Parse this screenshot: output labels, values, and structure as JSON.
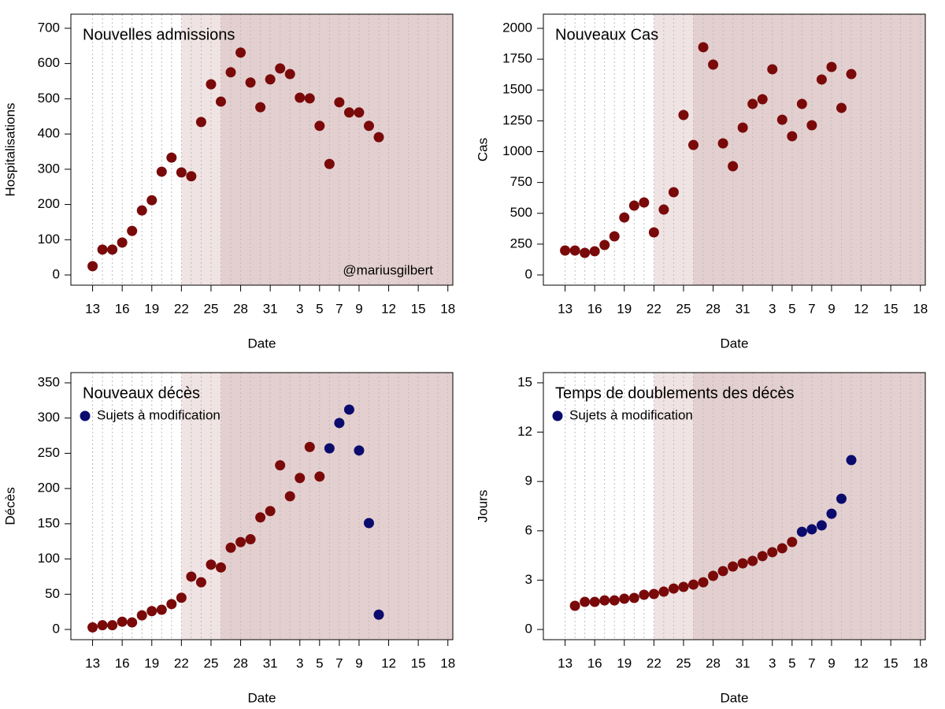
{
  "chart_data": [
    {
      "type": "scatter",
      "title": "Nouvelles admissions",
      "xlabel": "Date",
      "ylabel": "Hospitalisations",
      "annotation": "@mariusgilbert",
      "categories": [
        "13",
        null,
        null,
        "16",
        null,
        null,
        "19",
        null,
        null,
        "22",
        null,
        null,
        "25",
        null,
        null,
        "28",
        null,
        null,
        "31",
        null,
        null,
        "3",
        null,
        "5",
        null,
        "7",
        null,
        "9",
        null,
        null,
        "12",
        null,
        null,
        "15",
        null,
        null,
        "18"
      ],
      "series": [
        {
          "color": "#7a0a0a",
          "values": [
            25,
            72,
            72,
            92,
            125,
            183,
            212,
            293,
            333,
            291,
            280,
            434,
            541,
            492,
            575,
            631,
            546,
            476,
            555,
            586,
            570,
            503,
            501,
            423,
            315,
            490,
            461,
            461,
            423,
            391,
            null,
            null,
            null,
            null,
            null,
            null,
            null
          ]
        }
      ],
      "xlim": [
        -2.2,
        36.5
      ],
      "ylim": [
        -29,
        740
      ],
      "yticks": [
        0,
        100,
        200,
        300,
        400,
        500,
        600,
        700
      ],
      "grid": true,
      "bands": [
        {
          "start": 9,
          "end": 13,
          "color": "#f0e3e3"
        },
        {
          "start": 13,
          "end": 36.5,
          "color": "#e3cfcf"
        }
      ]
    },
    {
      "type": "scatter",
      "title": "Nouveaux Cas",
      "xlabel": "Date",
      "ylabel": "Cas",
      "categories": [
        "13",
        null,
        null,
        "16",
        null,
        null,
        "19",
        null,
        null,
        "22",
        null,
        null,
        "25",
        null,
        null,
        "28",
        null,
        null,
        "31",
        null,
        null,
        "3",
        null,
        "5",
        null,
        "7",
        null,
        "9",
        null,
        null,
        "12",
        null,
        null,
        "15",
        null,
        null,
        "18"
      ],
      "series": [
        {
          "color": "#7a0a0a",
          "values": [
            198,
            198,
            179,
            192,
            243,
            313,
            466,
            562,
            588,
            345,
            530,
            671,
            1297,
            1054,
            1847,
            1706,
            1067,
            882,
            1195,
            1387,
            1425,
            1668,
            1259,
            1125,
            1387,
            1214,
            1585,
            1687,
            1355,
            1629,
            null,
            null,
            null,
            null,
            null,
            null,
            null
          ]
        }
      ],
      "xlim": [
        -2.2,
        36.5
      ],
      "ylim": [
        -83,
        2115
      ],
      "yticks": [
        0,
        250,
        500,
        750,
        1000,
        1250,
        1500,
        1750,
        2000
      ],
      "grid": true,
      "bands": [
        {
          "start": 9,
          "end": 13,
          "color": "#f0e3e3"
        },
        {
          "start": 13,
          "end": 36.5,
          "color": "#e3cfcf"
        }
      ]
    },
    {
      "type": "scatter",
      "title": "Nouveaux décès",
      "xlabel": "Date",
      "ylabel": "Décès",
      "categories": [
        "13",
        null,
        null,
        "16",
        null,
        null,
        "19",
        null,
        null,
        "22",
        null,
        null,
        "25",
        null,
        null,
        "28",
        null,
        null,
        "31",
        null,
        null,
        "3",
        null,
        "5",
        null,
        "7",
        null,
        "9",
        null,
        null,
        "12",
        null,
        null,
        "15",
        null,
        null,
        "18"
      ],
      "series": [
        {
          "color": "#7a0a0a",
          "values": [
            3,
            6,
            6,
            11,
            10,
            20,
            26,
            28,
            36,
            45,
            75,
            67,
            92,
            88,
            116,
            124,
            128,
            159,
            168,
            233,
            189,
            215,
            259,
            217,
            null,
            null,
            null,
            null,
            null,
            null,
            null,
            null,
            null,
            null,
            null,
            null,
            null
          ]
        },
        {
          "name": "Sujets à modification",
          "color": "#0b0b6e",
          "values": [
            null,
            null,
            null,
            null,
            null,
            null,
            null,
            null,
            null,
            null,
            null,
            null,
            null,
            null,
            null,
            null,
            null,
            null,
            null,
            null,
            null,
            null,
            null,
            null,
            257,
            293,
            312,
            254,
            151,
            21,
            null,
            null,
            null,
            null,
            null,
            null,
            null
          ]
        }
      ],
      "xlim": [
        -2.2,
        36.5
      ],
      "ylim": [
        -14.5,
        364.5
      ],
      "yticks": [
        0,
        50,
        100,
        150,
        200,
        250,
        300,
        350
      ],
      "grid": true,
      "bands": [
        {
          "start": 9,
          "end": 13,
          "color": "#f0e3e3"
        },
        {
          "start": 13,
          "end": 36.5,
          "color": "#e3cfcf"
        }
      ]
    },
    {
      "type": "scatter",
      "title": "Temps de doublements des décès",
      "xlabel": "Date",
      "ylabel": "Jours",
      "categories": [
        "13",
        null,
        null,
        "16",
        null,
        null,
        "19",
        null,
        null,
        "22",
        null,
        null,
        "25",
        null,
        null,
        "28",
        null,
        null,
        "31",
        null,
        null,
        "3",
        null,
        "5",
        null,
        "7",
        null,
        "9",
        null,
        null,
        "12",
        null,
        null,
        "15",
        null,
        null,
        "18"
      ],
      "series": [
        {
          "color": "#7a0a0a",
          "values": [
            null,
            1.44,
            1.68,
            1.68,
            1.77,
            1.77,
            1.87,
            1.92,
            2.11,
            2.16,
            2.3,
            2.49,
            2.59,
            2.73,
            2.87,
            3.26,
            3.55,
            3.83,
            4.02,
            4.17,
            4.46,
            4.7,
            4.94,
            5.32,
            null,
            null,
            null,
            null,
            null,
            null,
            null,
            null,
            null,
            null,
            null,
            null,
            null
          ]
        },
        {
          "name": "Sujets à modification",
          "color": "#0b0b6e",
          "values": [
            null,
            null,
            null,
            null,
            null,
            null,
            null,
            null,
            null,
            null,
            null,
            null,
            null,
            null,
            null,
            null,
            null,
            null,
            null,
            null,
            null,
            null,
            null,
            null,
            5.94,
            6.09,
            6.33,
            7.04,
            7.95,
            10.3,
            null,
            null,
            null,
            null,
            null,
            null,
            null
          ]
        }
      ],
      "xlim": [
        -2.2,
        36.5
      ],
      "ylim": [
        -0.62,
        15.62
      ],
      "yticks": [
        0,
        3,
        6,
        9,
        12,
        15
      ],
      "grid": true,
      "bands": [
        {
          "start": 9,
          "end": 13,
          "color": "#f0e3e3"
        },
        {
          "start": 13,
          "end": 36.5,
          "color": "#e3cfcf"
        }
      ]
    }
  ]
}
